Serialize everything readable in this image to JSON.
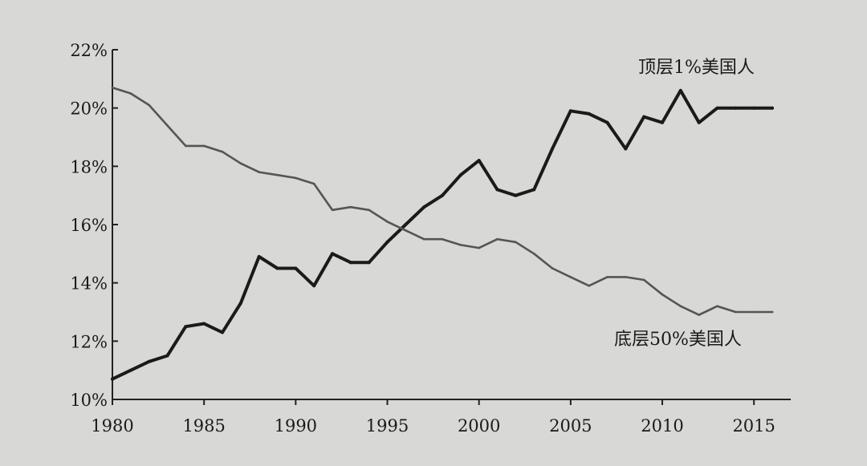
{
  "chart_data": {
    "type": "line",
    "x_ticks": [
      "1980",
      "1985",
      "1990",
      "1995",
      "2000",
      "2005",
      "2010",
      "2015"
    ],
    "y_ticks": [
      "10%",
      "12%",
      "14%",
      "16%",
      "18%",
      "20%",
      "22%"
    ],
    "xlim": [
      1980,
      2016
    ],
    "ylim": [
      10,
      22
    ],
    "grid": false,
    "series": [
      {
        "name": "顶层1%美国人",
        "color": "#1a1a1a",
        "x": [
          1980,
          1981,
          1982,
          1983,
          1984,
          1985,
          1986,
          1987,
          1988,
          1989,
          1990,
          1991,
          1992,
          1993,
          1994,
          1995,
          1996,
          1997,
          1998,
          1999,
          2000,
          2001,
          2002,
          2003,
          2004,
          2005,
          2006,
          2007,
          2008,
          2009,
          2010,
          2011,
          2012,
          2013,
          2014,
          2015,
          2016
        ],
        "y": [
          10.7,
          11.0,
          11.3,
          11.5,
          12.5,
          12.6,
          12.3,
          13.3,
          14.9,
          14.5,
          14.5,
          13.9,
          15.0,
          14.7,
          14.7,
          15.4,
          16.0,
          16.6,
          17.0,
          17.7,
          18.2,
          17.2,
          17.0,
          17.2,
          18.6,
          19.9,
          19.8,
          19.5,
          18.6,
          19.7,
          19.5,
          20.6,
          19.5,
          20.0,
          20.0,
          20.0,
          20.0
        ]
      },
      {
        "name": "底层50%美国人",
        "color": "#555555",
        "x": [
          1980,
          1981,
          1982,
          1983,
          1984,
          1985,
          1986,
          1987,
          1988,
          1989,
          1990,
          1991,
          1992,
          1993,
          1994,
          1995,
          1996,
          1997,
          1998,
          1999,
          2000,
          2001,
          2002,
          2003,
          2004,
          2005,
          2006,
          2007,
          2008,
          2009,
          2010,
          2011,
          2012,
          2013,
          2014,
          2015,
          2016
        ],
        "y": [
          20.7,
          20.5,
          20.1,
          19.4,
          18.7,
          18.7,
          18.5,
          18.1,
          17.8,
          17.7,
          17.6,
          17.4,
          16.5,
          16.6,
          16.5,
          16.1,
          15.8,
          15.5,
          15.5,
          15.3,
          15.2,
          15.5,
          15.4,
          15.0,
          14.5,
          14.2,
          13.9,
          14.2,
          14.2,
          14.1,
          13.6,
          13.2,
          12.9,
          13.2,
          13.0,
          13.0,
          13.0
        ]
      }
    ]
  }
}
